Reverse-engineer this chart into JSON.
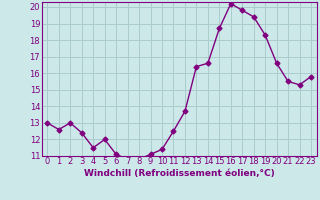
{
  "x": [
    0,
    1,
    2,
    3,
    4,
    5,
    6,
    7,
    8,
    9,
    10,
    11,
    12,
    13,
    14,
    15,
    16,
    17,
    18,
    19,
    20,
    21,
    22,
    23
  ],
  "y": [
    13.0,
    12.6,
    13.0,
    12.4,
    11.5,
    12.0,
    11.1,
    10.8,
    10.8,
    11.1,
    11.4,
    12.5,
    13.7,
    16.4,
    16.6,
    18.7,
    20.2,
    19.8,
    19.4,
    18.3,
    16.6,
    15.5,
    15.3,
    15.8
  ],
  "line_color": "#800080",
  "marker": "D",
  "marker_size": 2.5,
  "background_color": "#cce8e8",
  "grid_color": "#aacccc",
  "xlabel": "Windchill (Refroidissement éolien,°C)",
  "xlabel_fontsize": 6.5,
  "ylim": [
    11,
    20
  ],
  "xlim_min": -0.5,
  "xlim_max": 23.5,
  "yticks": [
    11,
    12,
    13,
    14,
    15,
    16,
    17,
    18,
    19,
    20
  ],
  "xticks": [
    0,
    1,
    2,
    3,
    4,
    5,
    6,
    7,
    8,
    9,
    10,
    11,
    12,
    13,
    14,
    15,
    16,
    17,
    18,
    19,
    20,
    21,
    22,
    23
  ],
  "tick_fontsize": 6,
  "line_width": 1.0
}
